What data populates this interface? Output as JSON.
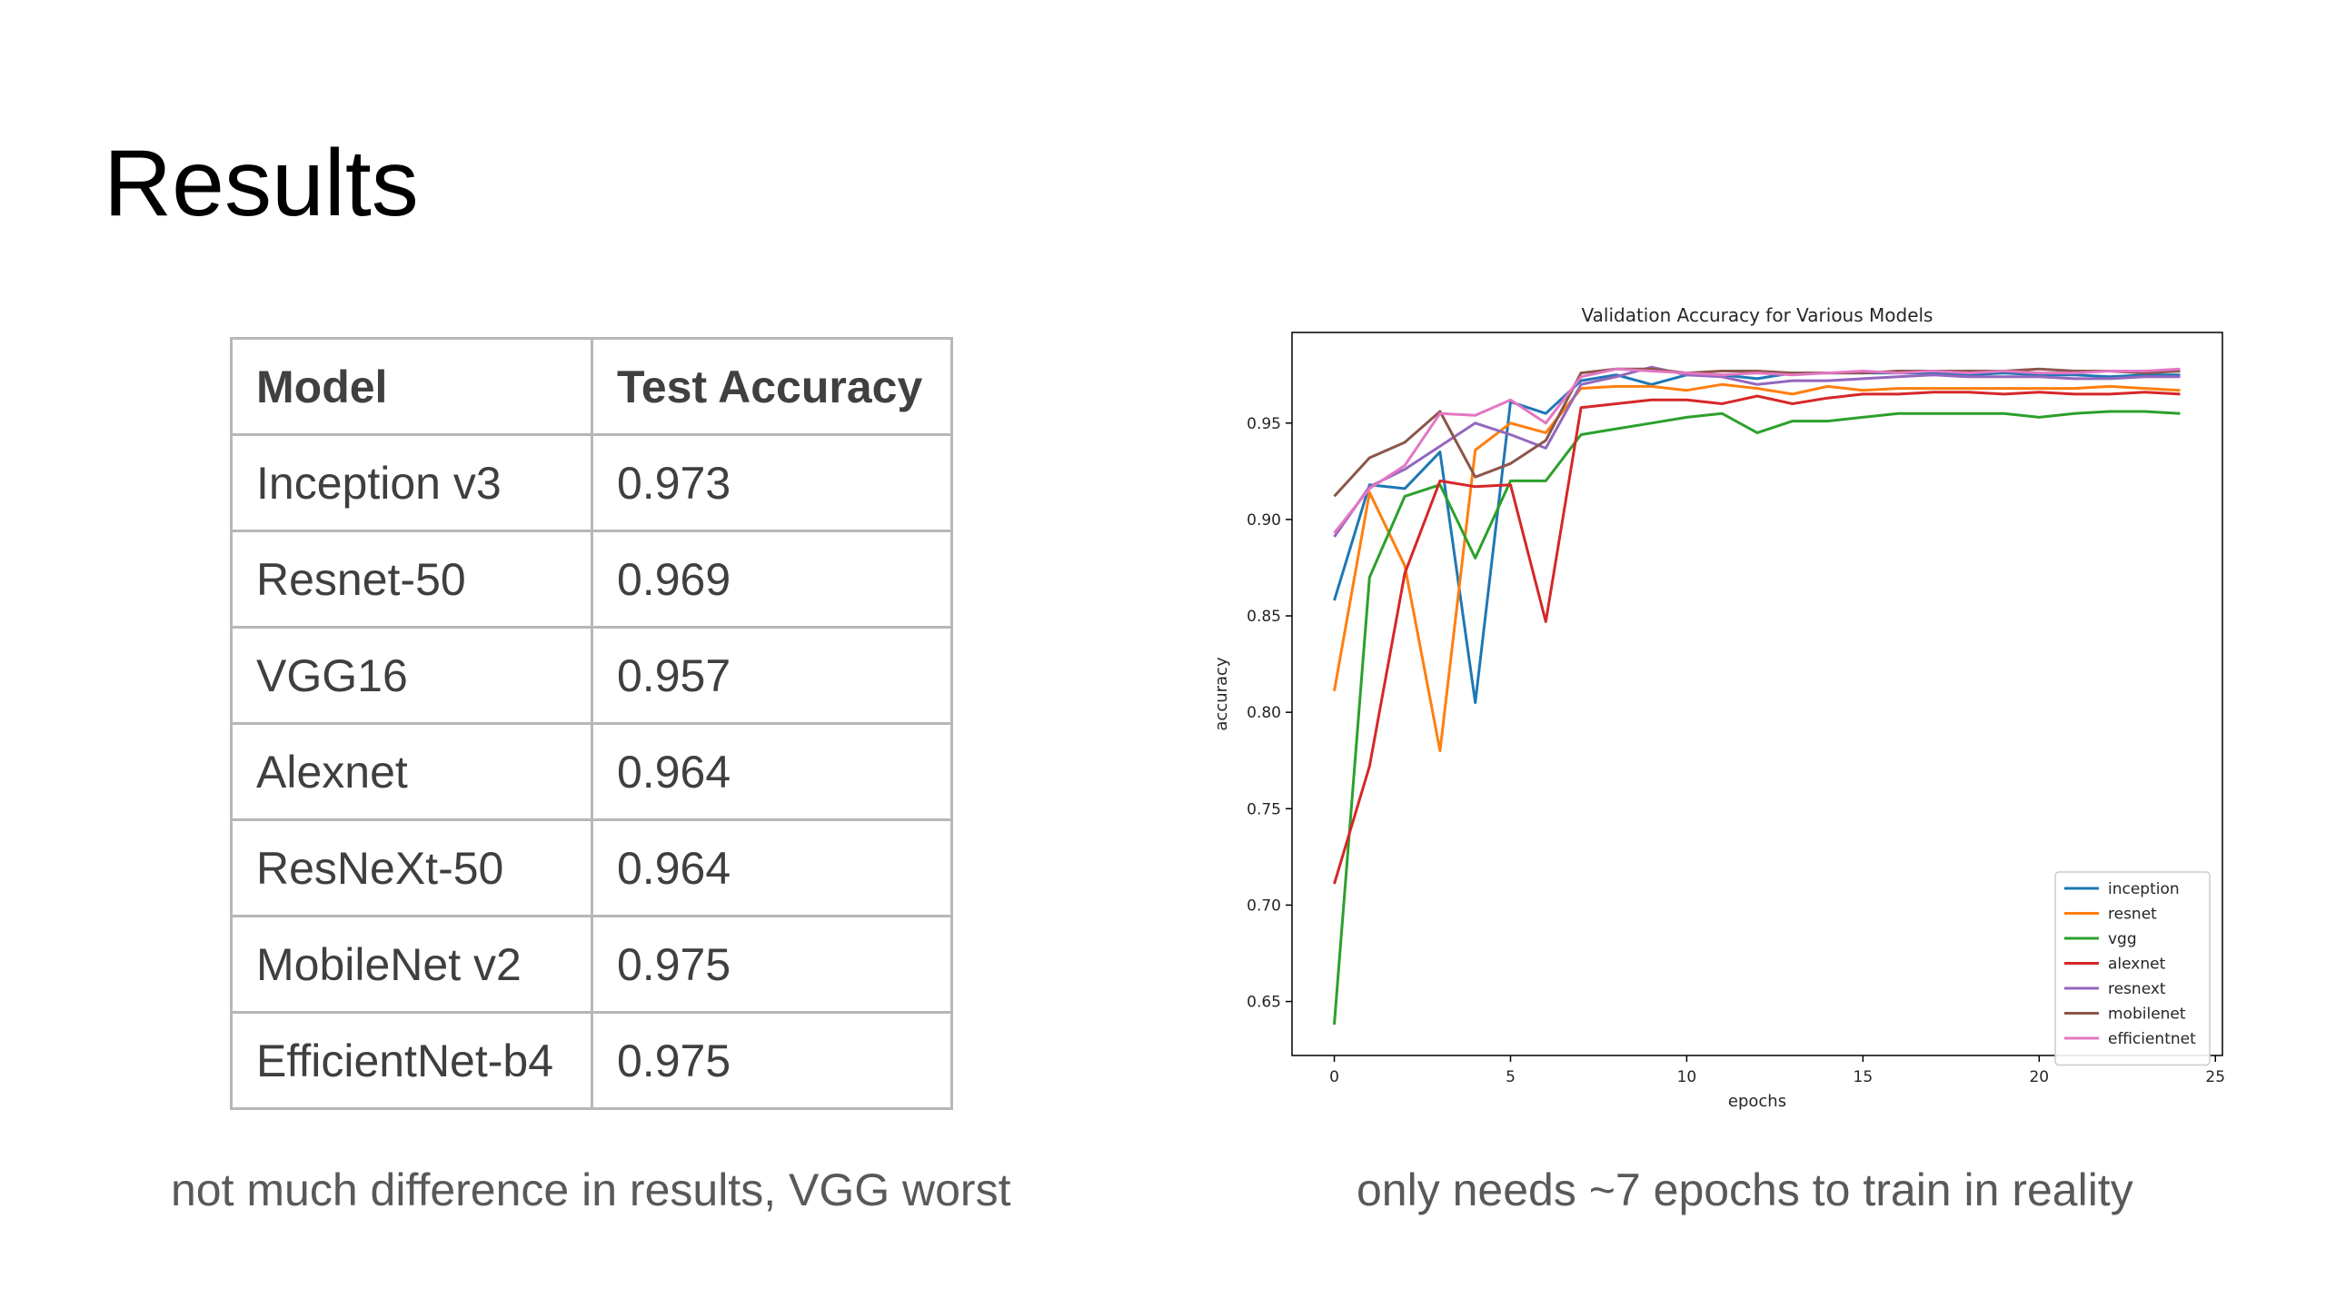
{
  "slide": {
    "title": "Results",
    "caption_left": "not much difference in results, VGG worst",
    "caption_right": "only needs ~7 epochs to train in reality"
  },
  "table": {
    "headers": [
      "Model",
      "Test Accuracy"
    ],
    "rows": [
      [
        "Inception v3",
        "0.973"
      ],
      [
        "Resnet-50",
        "0.969"
      ],
      [
        "VGG16",
        "0.957"
      ],
      [
        "Alexnet",
        "0.964"
      ],
      [
        "ResNeXt-50",
        "0.964"
      ],
      [
        "MobileNet v2",
        "0.975"
      ],
      [
        "EfficientNet-b4",
        "0.975"
      ]
    ]
  },
  "chart_data": {
    "type": "line",
    "title": "Validation Accuracy for Various Models",
    "xlabel": "epochs",
    "ylabel": "accuracy",
    "xlim": [
      -1.2,
      25.2
    ],
    "ylim": [
      0.622,
      0.997
    ],
    "xticks": [
      0,
      5,
      10,
      15,
      20,
      25
    ],
    "yticks": [
      0.65,
      0.7,
      0.75,
      0.8,
      0.85,
      0.9,
      0.95
    ],
    "grid": false,
    "legend_position": "lower-right",
    "x": [
      0,
      1,
      2,
      3,
      4,
      5,
      6,
      7,
      8,
      9,
      10,
      11,
      12,
      13,
      14,
      15,
      16,
      17,
      18,
      19,
      20,
      21,
      22,
      23,
      24
    ],
    "series": [
      {
        "name": "inception",
        "color": "#1f77b4",
        "values": [
          0.858,
          0.918,
          0.916,
          0.935,
          0.805,
          0.961,
          0.955,
          0.972,
          0.975,
          0.97,
          0.975,
          0.975,
          0.973,
          0.976,
          0.976,
          0.976,
          0.976,
          0.976,
          0.975,
          0.976,
          0.975,
          0.975,
          0.974,
          0.975,
          0.975
        ]
      },
      {
        "name": "resnet",
        "color": "#ff7f0e",
        "values": [
          0.811,
          0.914,
          0.876,
          0.78,
          0.936,
          0.95,
          0.945,
          0.968,
          0.969,
          0.969,
          0.967,
          0.97,
          0.968,
          0.965,
          0.969,
          0.967,
          0.968,
          0.968,
          0.968,
          0.968,
          0.968,
          0.968,
          0.969,
          0.968,
          0.967
        ]
      },
      {
        "name": "vgg",
        "color": "#2ca02c",
        "values": [
          0.638,
          0.87,
          0.912,
          0.918,
          0.88,
          0.92,
          0.92,
          0.944,
          0.947,
          0.95,
          0.953,
          0.955,
          0.945,
          0.951,
          0.951,
          0.953,
          0.955,
          0.955,
          0.955,
          0.955,
          0.953,
          0.955,
          0.956,
          0.956,
          0.955
        ]
      },
      {
        "name": "alexnet",
        "color": "#d62728",
        "values": [
          0.711,
          0.772,
          0.872,
          0.92,
          0.917,
          0.918,
          0.847,
          0.958,
          0.96,
          0.962,
          0.962,
          0.96,
          0.964,
          0.96,
          0.963,
          0.965,
          0.965,
          0.966,
          0.966,
          0.965,
          0.966,
          0.965,
          0.965,
          0.966,
          0.965
        ]
      },
      {
        "name": "resnext",
        "color": "#9467bd",
        "values": [
          0.891,
          0.917,
          0.926,
          0.938,
          0.95,
          0.944,
          0.937,
          0.97,
          0.974,
          0.979,
          0.975,
          0.974,
          0.97,
          0.972,
          0.972,
          0.973,
          0.974,
          0.975,
          0.974,
          0.974,
          0.974,
          0.973,
          0.973,
          0.974,
          0.974
        ]
      },
      {
        "name": "mobilenet",
        "color": "#8c564b",
        "values": [
          0.912,
          0.932,
          0.94,
          0.956,
          0.922,
          0.929,
          0.941,
          0.976,
          0.978,
          0.978,
          0.976,
          0.977,
          0.977,
          0.976,
          0.976,
          0.976,
          0.977,
          0.977,
          0.977,
          0.977,
          0.978,
          0.977,
          0.977,
          0.976,
          0.977
        ]
      },
      {
        "name": "efficientnet",
        "color": "#e377c2",
        "values": [
          0.893,
          0.916,
          0.928,
          0.955,
          0.954,
          0.962,
          0.95,
          0.974,
          0.978,
          0.977,
          0.976,
          0.975,
          0.976,
          0.975,
          0.976,
          0.977,
          0.976,
          0.977,
          0.976,
          0.977,
          0.976,
          0.976,
          0.977,
          0.977,
          0.978
        ]
      }
    ]
  }
}
